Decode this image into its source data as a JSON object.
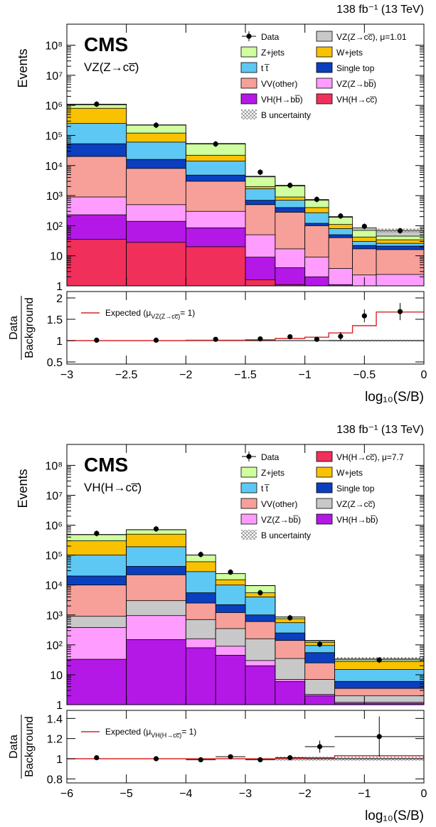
{
  "chart_data": [
    {
      "type": "bar",
      "subtype": "stacked-histogram-with-ratio",
      "lumi_label": "138 fb⁻¹ (13 TeV)",
      "experiment_label": "CMS",
      "process_label": "VZ(Z→cc̅)",
      "ylabel": "Events",
      "xlabel": "log₁₀(S/B)",
      "ratio_ylabel_top": "Data",
      "ratio_ylabel_bottom": "Background",
      "ylog": true,
      "xlim": [
        -3,
        0
      ],
      "ylim": [
        1,
        500000000
      ],
      "ratio_ylim": [
        0.45,
        2.15
      ],
      "x_ticks": [
        -3,
        -2.5,
        -2,
        -1.5,
        -1,
        -0.5,
        0
      ],
      "x_tick_labels": [
        "−3",
        "−2.5",
        "−2",
        "−1.5",
        "−1",
        "−0.5",
        "0"
      ],
      "y_ticks": [
        {
          "value": 1,
          "label": "1"
        },
        {
          "value": 10,
          "label": "10"
        },
        {
          "value": 100,
          "label": "10²"
        },
        {
          "value": 1000,
          "label": "10³"
        },
        {
          "value": 10000,
          "label": "10⁴"
        },
        {
          "value": 100000,
          "label": "10⁵"
        },
        {
          "value": 1000000,
          "label": "10⁶"
        },
        {
          "value": 10000000,
          "label": "10⁷"
        },
        {
          "value": 100000000,
          "label": "10⁸"
        }
      ],
      "ratio_ticks": [
        {
          "value": 0.5,
          "label": "0.5"
        },
        {
          "value": 1,
          "label": "1"
        },
        {
          "value": 1.5,
          "label": "1.5"
        },
        {
          "value": 2,
          "label": "2"
        }
      ],
      "bin_edges": [
        -3,
        -2.5,
        -2,
        -1.5,
        -1.25,
        -1.0,
        -0.8,
        -0.6,
        -0.4,
        0
      ],
      "stack": [
        {
          "name": "VH(H→cc̅)",
          "color": "#f0305a",
          "values": [
            35,
            28,
            20,
            1.6,
            1.1,
            1,
            1,
            1,
            1
          ]
        },
        {
          "name": "VH(H→bb̅)",
          "color": "#b418e6",
          "values": [
            230,
            140,
            85,
            9,
            4,
            2,
            1.1,
            1,
            1
          ]
        },
        {
          "name": "VZ(Z→bb̅)",
          "color": "#ff9cff",
          "values": [
            900,
            500,
            300,
            50,
            17,
            9,
            3.8,
            2.3,
            2.4
          ]
        },
        {
          "name": "VV(other)",
          "color": "#f7a09a",
          "values": [
            20000,
            8000,
            3000,
            500,
            280,
            100,
            40,
            17,
            16
          ]
        },
        {
          "name": "Single top",
          "color": "#0a3fbf",
          "values": [
            53000,
            16000,
            4800,
            700,
            400,
            120,
            50,
            22,
            21
          ]
        },
        {
          "name": "t t̅",
          "color": "#5ec8f5",
          "values": [
            250000,
            60000,
            14000,
            1700,
            700,
            270,
            80,
            30,
            26
          ]
        },
        {
          "name": "W+jets",
          "color": "#f9c200",
          "values": [
            800000,
            120000,
            22000,
            2000,
            900,
            400,
            110,
            42,
            34
          ]
        },
        {
          "name": "Z+jets",
          "color": "#cfff9e",
          "values": [
            1050000,
            220000,
            52000,
            4200,
            2100,
            700,
            190,
            70,
            45
          ]
        },
        {
          "name": "VZ(Z→cc̅), μ=1.01",
          "color": "#c8c8c8",
          "values": [
            1100000,
            225000,
            54000,
            4400,
            2200,
            740,
            200,
            85,
            70
          ]
        }
      ],
      "data_points": [
        {
          "x": -2.75,
          "y": 1100000
        },
        {
          "x": -2.25,
          "y": 220000
        },
        {
          "x": -1.75,
          "y": 52000
        },
        {
          "x": -1.375,
          "y": 6000
        },
        {
          "x": -1.125,
          "y": 2200
        },
        {
          "x": -0.9,
          "y": 750
        },
        {
          "x": -0.7,
          "y": 210
        },
        {
          "x": -0.5,
          "y": 95
        },
        {
          "x": -0.2,
          "y": 68
        }
      ],
      "ratio_points": [
        {
          "x": -2.75,
          "y": 1.01,
          "err": 0.005
        },
        {
          "x": -2.25,
          "y": 1.01,
          "err": 0.01
        },
        {
          "x": -1.75,
          "y": 1.03,
          "err": 0.02
        },
        {
          "x": -1.375,
          "y": 1.04,
          "err": 0.03
        },
        {
          "x": -1.125,
          "y": 1.09,
          "err": 0.04
        },
        {
          "x": -0.9,
          "y": 1.03,
          "err": 0.05
        },
        {
          "x": -0.7,
          "y": 1.1,
          "err": 0.1
        },
        {
          "x": -0.5,
          "y": 1.58,
          "err": 0.15
        },
        {
          "x": -0.2,
          "y": 1.68,
          "err": 0.2
        }
      ],
      "expected_line": {
        "label": "Expected (μ",
        "label_sub": "VZ(Z→cc̅)",
        "label_end": "= 1)",
        "color": "#d62728",
        "values": [
          1.0,
          1.0,
          1.01,
          1.02,
          1.05,
          1.08,
          1.18,
          1.35,
          1.67
        ]
      },
      "data_legend": "Data",
      "unc_legend": "B uncertainty",
      "legend_order": [
        "Data",
        "VZ(Z→cc̅), μ=1.01",
        "Z+jets",
        "W+jets",
        "t t̅",
        "Single top",
        "VV(other)",
        "VZ(Z→bb̅)",
        "VH(H→bb̅)",
        "VH(H→cc̅)",
        "B uncertainty"
      ]
    },
    {
      "type": "bar",
      "subtype": "stacked-histogram-with-ratio",
      "lumi_label": "138 fb⁻¹ (13 TeV)",
      "experiment_label": "CMS",
      "process_label": "VH(H→cc̅)",
      "ylabel": "Events",
      "xlabel": "log₁₀(S/B)",
      "ratio_ylabel_top": "Data",
      "ratio_ylabel_bottom": "Background",
      "ylog": true,
      "xlim": [
        -6,
        0
      ],
      "ylim": [
        1,
        500000000
      ],
      "ratio_ylim": [
        0.76,
        1.48
      ],
      "x_ticks": [
        -6,
        -5,
        -4,
        -3,
        -2,
        -1,
        0
      ],
      "x_tick_labels": [
        "−6",
        "−5",
        "−4",
        "−3",
        "−2",
        "−1",
        "0"
      ],
      "y_ticks": [
        {
          "value": 1,
          "label": "1"
        },
        {
          "value": 10,
          "label": "10"
        },
        {
          "value": 100,
          "label": "10²"
        },
        {
          "value": 1000,
          "label": "10³"
        },
        {
          "value": 10000,
          "label": "10⁴"
        },
        {
          "value": 100000,
          "label": "10⁵"
        },
        {
          "value": 1000000,
          "label": "10⁶"
        },
        {
          "value": 10000000,
          "label": "10⁷"
        },
        {
          "value": 100000000,
          "label": "10⁸"
        }
      ],
      "ratio_ticks": [
        {
          "value": 0.8,
          "label": "0.8"
        },
        {
          "value": 1,
          "label": "1"
        },
        {
          "value": 1.2,
          "label": "1.2"
        },
        {
          "value": 1.4,
          "label": "1.4"
        }
      ],
      "bin_edges": [
        -6,
        -5,
        -4,
        -3.5,
        -3,
        -2.5,
        -2,
        -1.5,
        0
      ],
      "stack": [
        {
          "name": "VH(H→bb̅)",
          "color": "#b418e6",
          "values": [
            33,
            150,
            80,
            45,
            20,
            6,
            2,
            1.1
          ]
        },
        {
          "name": "VZ(Z→bb̅)",
          "color": "#ff9cff",
          "values": [
            380,
            950,
            160,
            90,
            30,
            7,
            2.2,
            1.2
          ]
        },
        {
          "name": "VZ(Z→cc̅)",
          "color": "#c8c8c8",
          "values": [
            900,
            3000,
            700,
            350,
            160,
            35,
            7,
            2
          ]
        },
        {
          "name": "VV(other)",
          "color": "#f7a09a",
          "values": [
            10000,
            22000,
            2500,
            1200,
            600,
            140,
            25,
            3.5
          ]
        },
        {
          "name": "Single top",
          "color": "#0a3fbf",
          "values": [
            20000,
            42000,
            5500,
            2200,
            1000,
            250,
            55,
            6
          ]
        },
        {
          "name": "t t̅",
          "color": "#5ec8f5",
          "values": [
            100000,
            190000,
            28000,
            10000,
            4000,
            550,
            95,
            15
          ]
        },
        {
          "name": "W+jets",
          "color": "#f9c200",
          "values": [
            300000,
            500000,
            60000,
            15000,
            5500,
            750,
            120,
            28
          ]
        },
        {
          "name": "Z+jets",
          "color": "#cfff9e",
          "values": [
            480000,
            700000,
            100000,
            24000,
            9500,
            850,
            135,
            33
          ]
        },
        {
          "name": "VH(H→cc̅), μ=7.7",
          "color": "#f0305a",
          "values": [
            490000,
            710000,
            101000,
            24100,
            9600,
            855,
            140,
            34
          ]
        }
      ],
      "data_points": [
        {
          "x": -5.5,
          "y": 530000
        },
        {
          "x": -4.5,
          "y": 750000
        },
        {
          "x": -3.75,
          "y": 105000
        },
        {
          "x": -3.25,
          "y": 27000
        },
        {
          "x": -2.75,
          "y": 5500
        },
        {
          "x": -2.25,
          "y": 800
        },
        {
          "x": -1.75,
          "y": 105
        },
        {
          "x": -0.75,
          "y": 31
        }
      ],
      "ratio_points": [
        {
          "x": -5.5,
          "y": 1.01,
          "err": 0.005,
          "xerr": 0
        },
        {
          "x": -4.5,
          "y": 1.0,
          "err": 0.005,
          "xerr": 0
        },
        {
          "x": -3.75,
          "y": 0.99,
          "err": 0.01,
          "xerr": 0.25
        },
        {
          "x": -3.25,
          "y": 1.02,
          "err": 0.01,
          "xerr": 0.25
        },
        {
          "x": -2.75,
          "y": 0.99,
          "err": 0.015,
          "xerr": 0.25
        },
        {
          "x": -2.25,
          "y": 1.01,
          "err": 0.02,
          "xerr": 0.25
        },
        {
          "x": -1.75,
          "y": 1.12,
          "err": 0.06,
          "xerr": 0.25
        },
        {
          "x": -0.75,
          "y": 1.22,
          "err": 0.2,
          "xerr": 0.75
        }
      ],
      "expected_line": {
        "label": "Expected (μ",
        "label_sub": "VH(H→cc̅)",
        "label_end": "= 1)",
        "color": "#d62728",
        "values": [
          1.0,
          1.0,
          1.0,
          1.0,
          1.0,
          1.0,
          1.01,
          1.03
        ]
      },
      "data_legend": "Data",
      "unc_legend": "B uncertainty",
      "legend_order": [
        "Data",
        "VH(H→cc̅), μ=7.7",
        "Z+jets",
        "W+jets",
        "t t̅",
        "Single top",
        "VV(other)",
        "VZ(Z→cc̅)",
        "VZ(Z→bb̅)",
        "VH(H→bb̅)",
        "B uncertainty"
      ]
    }
  ]
}
